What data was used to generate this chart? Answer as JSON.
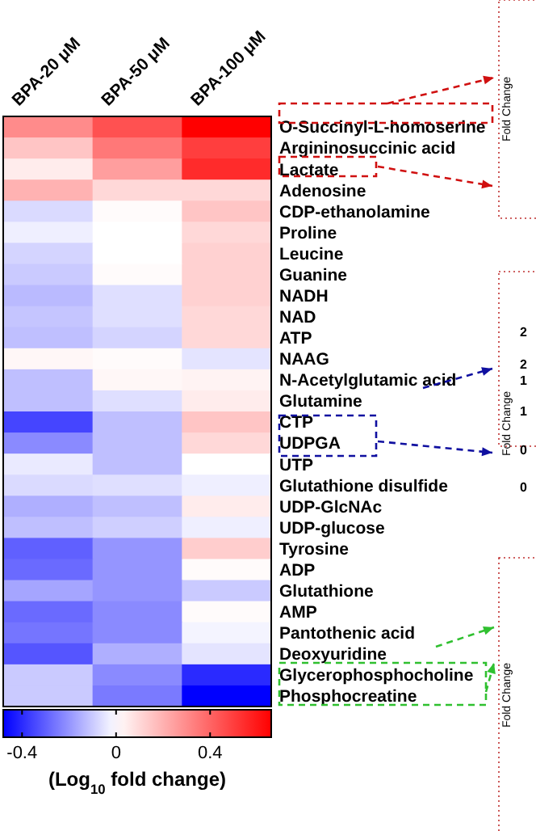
{
  "chart_data": {
    "type": "heatmap",
    "categories": [
      "BPA-20 μM",
      "BPA-50 μM",
      "BPA-100 μM"
    ],
    "y_categories": [
      "O-Succinyl-L-homoserine",
      "Argininosuccinic acid",
      "Lactate",
      "Adenosine",
      "CDP-ethanolamine",
      "Proline",
      "Leucine",
      "Guanine",
      "NADH",
      "NAD",
      "ATP",
      "NAAG",
      "N-Acetylglutamic acid",
      "Glutamine",
      "CTP",
      "UDPGA",
      "UTP",
      "Glutathione disulfide",
      "UDP-GlcNAc",
      "UDP-glucose",
      "Tyrosine",
      "ADP",
      "Glutathione",
      "AMP",
      "Pantothenic acid",
      "Deoxyuridine",
      "Glycerophosphocholine",
      "Phosphocreatine"
    ],
    "cells": [
      [
        0.3,
        0.45,
        0.66
      ],
      [
        0.15,
        0.35,
        0.5
      ],
      [
        0.05,
        0.25,
        0.55
      ],
      [
        0.2,
        0.1,
        0.1
      ],
      [
        -0.07,
        0.01,
        0.15
      ],
      [
        -0.03,
        0.0,
        0.1
      ],
      [
        -0.08,
        0.0,
        0.12
      ],
      [
        -0.1,
        0.01,
        0.12
      ],
      [
        -0.13,
        -0.06,
        0.12
      ],
      [
        -0.11,
        -0.06,
        0.1
      ],
      [
        -0.12,
        -0.08,
        0.1
      ],
      [
        0.02,
        0.01,
        -0.05
      ],
      [
        -0.12,
        0.02,
        0.03
      ],
      [
        -0.12,
        -0.06,
        0.05
      ],
      [
        -0.35,
        -0.12,
        0.15
      ],
      [
        -0.22,
        -0.12,
        0.1
      ],
      [
        -0.04,
        -0.12,
        0.0
      ],
      [
        -0.07,
        -0.06,
        -0.03
      ],
      [
        -0.15,
        -0.12,
        0.05
      ],
      [
        -0.12,
        -0.09,
        -0.03
      ],
      [
        -0.3,
        -0.2,
        0.13
      ],
      [
        -0.28,
        -0.2,
        0.01
      ],
      [
        -0.17,
        -0.2,
        -0.1
      ],
      [
        -0.28,
        -0.22,
        0.01
      ],
      [
        -0.26,
        -0.22,
        -0.02
      ],
      [
        -0.32,
        -0.15,
        -0.05
      ],
      [
        -0.1,
        -0.22,
        -0.4
      ],
      [
        -0.1,
        -0.25,
        -0.48
      ]
    ],
    "clim": [
      -0.48,
      0.66
    ],
    "cticks": [
      -0.4,
      0,
      0.4
    ],
    "clabel": "(Log$_{10}$ fold change)",
    "annotations": [
      "Fold Change",
      "Fold Change",
      "Fold Change",
      "2",
      "2",
      "1",
      "1",
      "0",
      "0"
    ]
  }
}
